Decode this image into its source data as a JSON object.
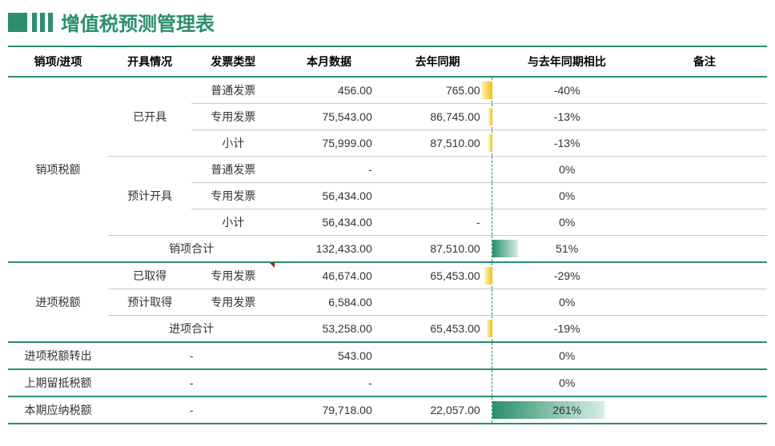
{
  "title": "增值税预测管理表",
  "colors": {
    "accent": "#2a8f6a",
    "neg_bar": "#f0c000",
    "pos_bar": "#2a8f6a"
  },
  "headers": {
    "category": "销项/进项",
    "status": "开具情况",
    "invoice_type": "发票类型",
    "current": "本月数据",
    "previous": "去年同期",
    "compare": "与去年同期相比",
    "note": "备注"
  },
  "labels": {
    "output_tax": "销项税额",
    "issued": "已开具",
    "planned_issue": "预计开具",
    "ordinary": "普通发票",
    "special": "专用发票",
    "subtotal": "小计",
    "output_total": "销项合计",
    "input_tax": "进项税额",
    "obtained": "已取得",
    "planned_obtain": "预计取得",
    "input_total": "进项合计",
    "input_transfer": "进项税额转出",
    "prev_retained": "上期留抵税额",
    "payable": "本期应纳税额",
    "dash": "-"
  },
  "rows": {
    "out_issued_ord": {
      "cur": "456.00",
      "prev": "765.00",
      "pct": "-40%",
      "dir": "neg",
      "w": 14
    },
    "out_issued_spec": {
      "cur": "75,543.00",
      "prev": "86,745.00",
      "pct": "-13%",
      "dir": "neg",
      "w": 5
    },
    "out_issued_sub": {
      "cur": "75,999.00",
      "prev": "87,510.00",
      "pct": "-13%",
      "dir": "neg",
      "w": 5
    },
    "out_plan_ord": {
      "cur": "-",
      "prev": "",
      "pct": "0%",
      "dir": "none",
      "w": 0
    },
    "out_plan_spec": {
      "cur": "56,434.00",
      "prev": "",
      "pct": "0%",
      "dir": "none",
      "w": 0
    },
    "out_plan_sub": {
      "cur": "56,434.00",
      "prev": "-",
      "pct": "0%",
      "dir": "none",
      "w": 0
    },
    "out_total": {
      "cur": "132,433.00",
      "prev": "87,510.00",
      "pct": "51%",
      "dir": "pos",
      "w": 32
    },
    "in_obt_spec": {
      "cur": "46,674.00",
      "prev": "65,453.00",
      "pct": "-29%",
      "dir": "neg",
      "w": 10
    },
    "in_plan_spec": {
      "cur": "6,584.00",
      "prev": "",
      "pct": "0%",
      "dir": "none",
      "w": 0
    },
    "in_total": {
      "cur": "53,258.00",
      "prev": "65,453.00",
      "pct": "-19%",
      "dir": "neg",
      "w": 7
    },
    "in_transfer": {
      "cur": "543.00",
      "prev": "",
      "pct": "0%",
      "dir": "none",
      "w": 0
    },
    "prev_retained": {
      "cur": "-",
      "prev": "",
      "pct": "0%",
      "dir": "none",
      "w": 0
    },
    "payable": {
      "cur": "79,718.00",
      "prev": "22,057.00",
      "pct": "261%",
      "dir": "pos",
      "w": 140
    }
  }
}
